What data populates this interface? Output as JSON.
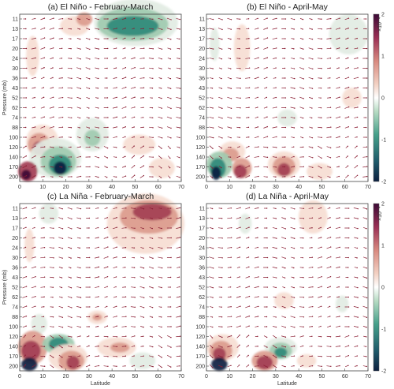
{
  "chart_data": [
    {
      "type": "heatmap",
      "title": "(a) El Niño - February-March",
      "xlabel": "",
      "ylabel": "Pressure (mb)",
      "xlim": [
        0,
        70
      ],
      "x_ticks": [
        "0",
        "10",
        "20",
        "30",
        "40",
        "50",
        "60",
        "70"
      ],
      "y_ticks": [
        "11",
        "13",
        "17",
        "20",
        "24",
        "30",
        "36",
        "43",
        "52",
        "62",
        "74",
        "88",
        "100",
        "120",
        "140",
        "170",
        "200"
      ],
      "y_scale": "log (pressure, inverted)",
      "colorbar": {
        "range": [
          -2,
          2
        ],
        "scale_label": "×10⁻⁴",
        "ticks": [
          "2",
          "1",
          "0",
          "-1",
          "-2"
        ]
      },
      "overlay": "wind vectors (dark red arrows)"
    },
    {
      "type": "heatmap",
      "title": "(b) El Niño - April-May",
      "xlabel": "",
      "ylabel": "",
      "xlim": [
        0,
        70
      ],
      "x_ticks": [
        "0",
        "10",
        "20",
        "30",
        "40",
        "50",
        "60",
        "70"
      ],
      "y_ticks": [
        "11",
        "13",
        "17",
        "20",
        "24",
        "30",
        "36",
        "43",
        "52",
        "62",
        "74",
        "88",
        "100",
        "120",
        "140",
        "170",
        "200"
      ],
      "y_scale": "log (pressure, inverted)",
      "colorbar": {
        "range": [
          -2,
          2
        ],
        "scale_label": "×10⁻⁴",
        "ticks": [
          "2",
          "1",
          "0",
          "-1",
          "-2"
        ]
      },
      "overlay": "wind vectors (dark red arrows)"
    },
    {
      "type": "heatmap",
      "title": "(c) La Niña - February-March",
      "xlabel": "Latitude",
      "ylabel": "Pressure (mb)",
      "xlim": [
        0,
        70
      ],
      "x_ticks": [
        "0",
        "10",
        "20",
        "30",
        "40",
        "50",
        "60",
        "70"
      ],
      "y_ticks": [
        "11",
        "13",
        "17",
        "20",
        "24",
        "30",
        "36",
        "43",
        "52",
        "62",
        "74",
        "88",
        "100",
        "120",
        "140",
        "170",
        "200"
      ],
      "y_scale": "log (pressure, inverted)",
      "colorbar": {
        "range": [
          -2,
          2
        ],
        "scale_label": "×10⁻⁴",
        "ticks": [
          "2",
          "1",
          "0",
          "-1",
          "-2"
        ]
      },
      "overlay": "wind vectors (dark red arrows)"
    },
    {
      "type": "heatmap",
      "title": "(d) La Niña - April-May",
      "xlabel": "Latitude",
      "ylabel": "",
      "xlim": [
        0,
        70
      ],
      "x_ticks": [
        "0",
        "10",
        "20",
        "30",
        "40",
        "50",
        "60",
        "70"
      ],
      "y_ticks": [
        "11",
        "13",
        "17",
        "20",
        "24",
        "30",
        "36",
        "43",
        "52",
        "62",
        "74",
        "88",
        "100",
        "120",
        "140",
        "170",
        "200"
      ],
      "y_scale": "log (pressure, inverted)",
      "colorbar": {
        "range": [
          -2,
          2
        ],
        "scale_label": "×10⁻⁴",
        "ticks": [
          "2",
          "1",
          "0",
          "-1",
          "-2"
        ]
      },
      "overlay": "wind vectors (dark red arrows)"
    }
  ],
  "colors": {
    "positive_light": "#f6ddd3",
    "positive_mid": "#dc9c8e",
    "positive_strong": "#a33e55",
    "positive_max": "#3d0a36",
    "negative_light": "#e2ece3",
    "negative_mid": "#9fcbb0",
    "negative_strong": "#2f8a7a",
    "negative_max": "#0c1f3f",
    "arrow": "#8a1c32"
  }
}
